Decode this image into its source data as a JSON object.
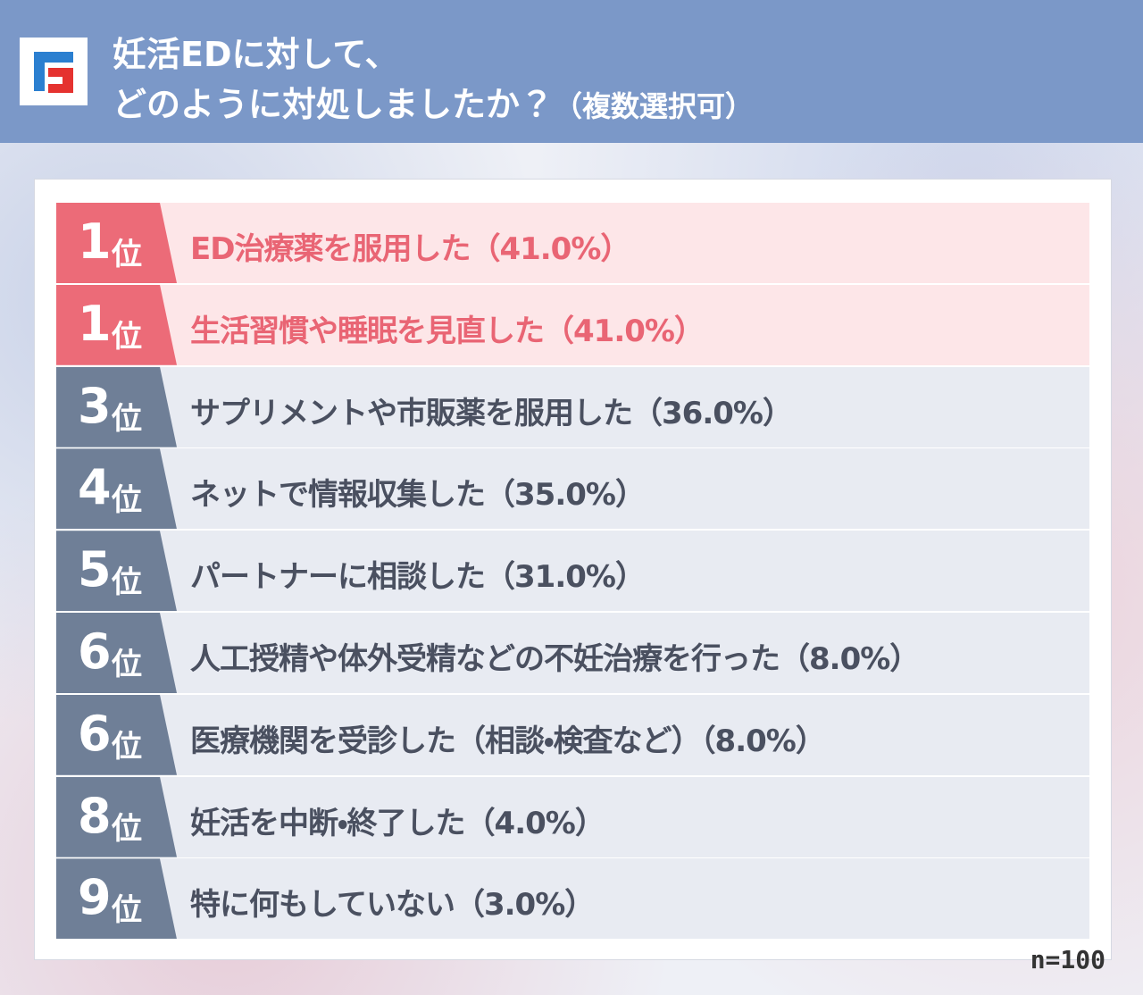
{
  "header": {
    "title_line1": "妊活EDに対して、",
    "title_line2": "どのように対処しましたか？",
    "title_note": "（複数選択可）"
  },
  "ranking": {
    "rows": [
      {
        "rank": "1",
        "suffix": "位",
        "label": "ED治療薬を服用した",
        "percent": "（41.0%）",
        "highlight": true
      },
      {
        "rank": "1",
        "suffix": "位",
        "label": "生活習慣や睡眠を見直した",
        "percent": "（41.0%）",
        "highlight": true
      },
      {
        "rank": "3",
        "suffix": "位",
        "label": "サプリメントや市販薬を服用した",
        "percent": "（36.0%）",
        "highlight": false
      },
      {
        "rank": "4",
        "suffix": "位",
        "label": "ネットで情報収集した",
        "percent": "（35.0%）",
        "highlight": false
      },
      {
        "rank": "5",
        "suffix": "位",
        "label": "パートナーに相談した",
        "percent": "（31.0%）",
        "highlight": false
      },
      {
        "rank": "6",
        "suffix": "位",
        "label": "人工授精や体外受精などの不妊治療を行った",
        "percent": "（8.0%）",
        "highlight": false
      },
      {
        "rank": "6",
        "suffix": "位",
        "label": "医療機関を受診した（相談・検査など）",
        "percent": "（8.0%）",
        "highlight": false
      },
      {
        "rank": "8",
        "suffix": "位",
        "label": "妊活を中断・終了した",
        "percent": "（4.0%）",
        "highlight": false
      },
      {
        "rank": "9",
        "suffix": "位",
        "label": "特に何もしていない",
        "percent": "（3.0%）",
        "highlight": false
      }
    ]
  },
  "footer": {
    "sample": "n=100"
  }
}
